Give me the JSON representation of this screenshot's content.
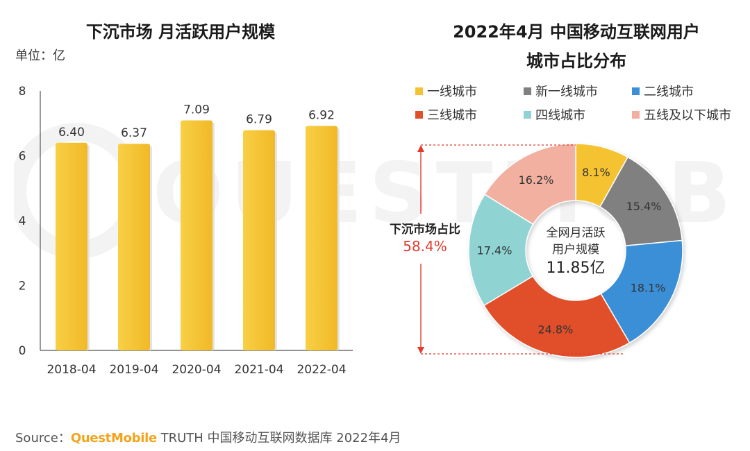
{
  "left_chart": {
    "title": "下沉市场 月活跃用户规模",
    "unit": "单位：亿",
    "chart_data": {
      "type": "bar",
      "categories": [
        "2018-04",
        "2019-04",
        "2020-04",
        "2021-04",
        "2022-04"
      ],
      "values": [
        6.4,
        6.37,
        7.09,
        6.79,
        6.92
      ],
      "value_labels": [
        "6.40",
        "6.37",
        "7.09",
        "6.79",
        "6.92"
      ],
      "ylim": [
        0,
        8
      ],
      "yticks": [
        "0",
        "2",
        "4",
        "6",
        "8"
      ],
      "color": "#f5c233"
    }
  },
  "right_chart": {
    "title_line1": "2022年4月 中国移动互联网用户",
    "title_line2": "城市占比分布",
    "legend": [
      {
        "label": "一线城市",
        "color": "#f5c233"
      },
      {
        "label": "新一线城市",
        "color": "#808080"
      },
      {
        "label": "二线城市",
        "color": "#3b8fd6"
      },
      {
        "label": "三线城市",
        "color": "#e0502c"
      },
      {
        "label": "四线城市",
        "color": "#8fd3d3"
      },
      {
        "label": "五线及以下城市",
        "color": "#f2b0a0"
      }
    ],
    "chart_data": {
      "type": "pie",
      "donut": true,
      "categories": [
        "一线城市",
        "新一线城市",
        "二线城市",
        "三线城市",
        "四线城市",
        "五线及以下城市"
      ],
      "values": [
        8.1,
        15.4,
        18.1,
        24.8,
        17.4,
        16.2
      ],
      "value_labels": [
        "8.1%",
        "15.4%",
        "18.1%",
        "24.8%",
        "17.4%",
        "16.2%"
      ],
      "colors": [
        "#f5c233",
        "#808080",
        "#3b8fd6",
        "#e0502c",
        "#8fd3d3",
        "#f2b0a0"
      ]
    },
    "center_line1": "全网月活跃",
    "center_line2": "用户规模",
    "center_value": "11.85亿",
    "bracket_label": "下沉市场占比",
    "bracket_value": "58.4%"
  },
  "source": {
    "prefix": "Source：",
    "brand": "QuestMobile",
    "rest": "TRUTH 中国移动互联网数据库 2022年4月"
  },
  "watermark_text": "QUESTMOBILE"
}
